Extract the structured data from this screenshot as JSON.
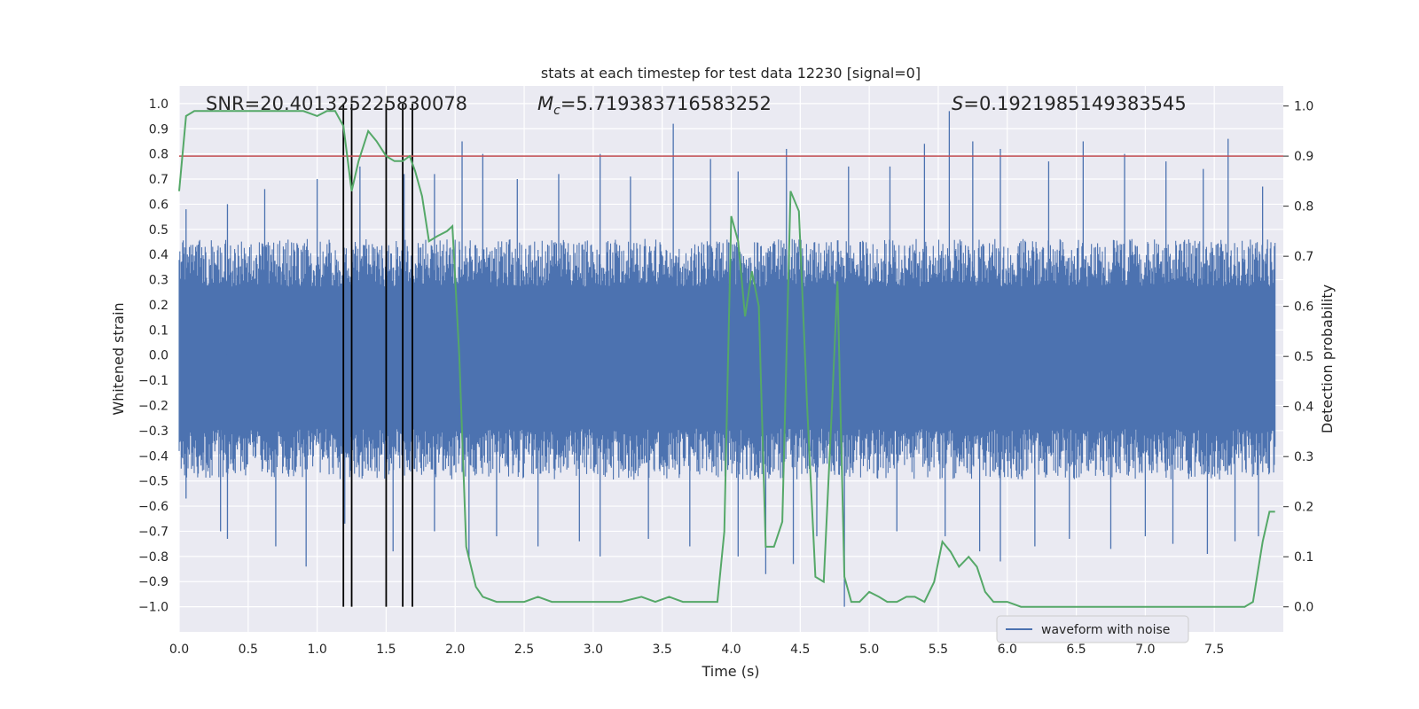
{
  "chart_data": {
    "type": "line",
    "title": "stats at each timestep for test data 12230 [signal=0]",
    "xlabel": "Time (s)",
    "ylabel_left": "Whitened strain",
    "ylabel_right": "Detection probability",
    "xlim": [
      0.0,
      8.0
    ],
    "ylim_left": [
      -1.1,
      1.07
    ],
    "ylim_right": [
      -0.05,
      1.04
    ],
    "grid": true,
    "x_ticks": [
      "0.0",
      "0.5",
      "1.0",
      "1.5",
      "2.0",
      "2.5",
      "3.0",
      "3.5",
      "4.0",
      "4.5",
      "5.0",
      "5.5",
      "6.0",
      "6.5",
      "7.0",
      "7.5"
    ],
    "x_tick_values": [
      0.0,
      0.5,
      1.0,
      1.5,
      2.0,
      2.5,
      3.0,
      3.5,
      4.0,
      4.5,
      5.0,
      5.5,
      6.0,
      6.5,
      7.0,
      7.5
    ],
    "y_ticks_left": [
      "1.0",
      "0.9",
      "0.8",
      "0.7",
      "0.6",
      "0.5",
      "0.4",
      "0.3",
      "0.2",
      "0.1",
      "0.0",
      "−0.1",
      "−0.2",
      "−0.3",
      "−0.4",
      "−0.5",
      "−0.6",
      "−0.7",
      "−0.8",
      "−0.9",
      "−1.0"
    ],
    "y_tick_values_left": [
      1.0,
      0.9,
      0.8,
      0.7,
      0.6,
      0.5,
      0.4,
      0.3,
      0.2,
      0.1,
      0.0,
      -0.1,
      -0.2,
      -0.3,
      -0.4,
      -0.5,
      -0.6,
      -0.7,
      -0.8,
      -0.9,
      -1.0
    ],
    "y_ticks_right": [
      "1.0",
      "0.9",
      "0.8",
      "0.7",
      "0.6",
      "0.5",
      "0.4",
      "0.3",
      "0.2",
      "0.1",
      "0.0"
    ],
    "y_tick_values_right": [
      1.0,
      0.9,
      0.8,
      0.7,
      0.6,
      0.5,
      0.4,
      0.3,
      0.2,
      0.1,
      0.0
    ],
    "annotations": {
      "snr": "SNR=20.401325225830078",
      "mc_symbol": "M",
      "mc_subscript": "c",
      "mc_value": "=5.719383716583252",
      "s_symbol": "S",
      "s_value": "=0.1921985149383545"
    },
    "threshold_right": 0.9,
    "vertical_markers": [
      1.19,
      1.25,
      1.5,
      1.62,
      1.69
    ],
    "waveform": {
      "name": "waveform with noise",
      "typical_low": -0.45,
      "typical_high": 0.42,
      "spikes_high": [
        [
          0.05,
          0.58
        ],
        [
          0.35,
          0.6
        ],
        [
          0.62,
          0.66
        ],
        [
          1.0,
          0.7
        ],
        [
          1.31,
          0.75
        ],
        [
          1.63,
          0.72
        ],
        [
          1.85,
          0.72
        ],
        [
          2.05,
          0.85
        ],
        [
          2.2,
          0.8
        ],
        [
          2.45,
          0.7
        ],
        [
          2.75,
          0.72
        ],
        [
          3.05,
          0.8
        ],
        [
          3.27,
          0.71
        ],
        [
          3.58,
          0.92
        ],
        [
          3.85,
          0.78
        ],
        [
          4.05,
          0.73
        ],
        [
          4.4,
          0.82
        ],
        [
          4.85,
          0.75
        ],
        [
          5.15,
          0.75
        ],
        [
          5.4,
          0.84
        ],
        [
          5.58,
          0.97
        ],
        [
          5.75,
          0.85
        ],
        [
          5.95,
          0.82
        ],
        [
          6.3,
          0.77
        ],
        [
          6.55,
          0.85
        ],
        [
          6.85,
          0.8
        ],
        [
          7.15,
          0.77
        ],
        [
          7.42,
          0.74
        ],
        [
          7.6,
          0.86
        ],
        [
          7.85,
          0.67
        ]
      ],
      "spikes_low": [
        [
          0.05,
          -0.57
        ],
        [
          0.3,
          -0.7
        ],
        [
          0.35,
          -0.73
        ],
        [
          0.7,
          -0.76
        ],
        [
          0.92,
          -0.84
        ],
        [
          1.2,
          -0.67
        ],
        [
          1.55,
          -0.78
        ],
        [
          1.85,
          -0.7
        ],
        [
          2.1,
          -0.8
        ],
        [
          2.3,
          -0.72
        ],
        [
          2.6,
          -0.76
        ],
        [
          2.9,
          -0.74
        ],
        [
          3.05,
          -0.8
        ],
        [
          3.4,
          -0.73
        ],
        [
          3.7,
          -0.76
        ],
        [
          4.05,
          -0.8
        ],
        [
          4.25,
          -0.87
        ],
        [
          4.45,
          -0.83
        ],
        [
          4.62,
          -0.72
        ],
        [
          4.82,
          -1.0
        ],
        [
          5.2,
          -0.7
        ],
        [
          5.55,
          -0.72
        ],
        [
          5.8,
          -0.78
        ],
        [
          5.95,
          -0.82
        ],
        [
          6.2,
          -0.76
        ],
        [
          6.45,
          -0.73
        ],
        [
          6.75,
          -0.77
        ],
        [
          7.0,
          -0.72
        ],
        [
          7.2,
          -0.75
        ],
        [
          7.45,
          -0.79
        ],
        [
          7.65,
          -0.74
        ],
        [
          7.82,
          -0.72
        ]
      ]
    },
    "detection_probability": {
      "x": [
        0.0,
        0.05,
        0.11,
        0.2,
        0.3,
        0.4,
        0.5,
        0.6,
        0.7,
        0.8,
        0.9,
        1.0,
        1.07,
        1.13,
        1.19,
        1.25,
        1.3,
        1.37,
        1.43,
        1.5,
        1.56,
        1.62,
        1.67,
        1.71,
        1.76,
        1.81,
        1.87,
        1.94,
        1.98,
        2.03,
        2.08,
        2.15,
        2.2,
        2.3,
        2.4,
        2.5,
        2.6,
        2.7,
        2.8,
        2.9,
        3.0,
        3.1,
        3.2,
        3.35,
        3.45,
        3.55,
        3.65,
        3.75,
        3.85,
        3.9,
        3.95,
        4.0,
        4.05,
        4.1,
        4.15,
        4.2,
        4.25,
        4.31,
        4.37,
        4.43,
        4.49,
        4.55,
        4.61,
        4.67,
        4.73,
        4.77,
        4.82,
        4.87,
        4.93,
        5.0,
        5.07,
        5.13,
        5.2,
        5.27,
        5.33,
        5.4,
        5.47,
        5.53,
        5.59,
        5.65,
        5.72,
        5.78,
        5.84,
        5.9,
        6.0,
        6.1,
        6.2,
        6.3,
        6.5,
        6.7,
        6.9,
        7.1,
        7.3,
        7.5,
        7.65,
        7.72,
        7.78,
        7.85,
        7.9,
        7.94
      ],
      "y": [
        0.83,
        0.98,
        0.99,
        0.99,
        0.99,
        0.99,
        0.99,
        0.99,
        0.99,
        0.99,
        0.99,
        0.98,
        0.99,
        0.99,
        0.96,
        0.83,
        0.89,
        0.95,
        0.93,
        0.9,
        0.89,
        0.89,
        0.9,
        0.87,
        0.82,
        0.73,
        0.74,
        0.75,
        0.76,
        0.5,
        0.12,
        0.04,
        0.02,
        0.01,
        0.01,
        0.01,
        0.02,
        0.01,
        0.01,
        0.01,
        0.01,
        0.01,
        0.01,
        0.02,
        0.01,
        0.02,
        0.01,
        0.01,
        0.01,
        0.01,
        0.15,
        0.78,
        0.73,
        0.58,
        0.67,
        0.6,
        0.12,
        0.12,
        0.17,
        0.83,
        0.79,
        0.4,
        0.06,
        0.05,
        0.4,
        0.65,
        0.06,
        0.01,
        0.01,
        0.03,
        0.02,
        0.01,
        0.01,
        0.02,
        0.02,
        0.01,
        0.05,
        0.13,
        0.11,
        0.08,
        0.1,
        0.08,
        0.03,
        0.01,
        0.01,
        0.0,
        0.0,
        0.0,
        0.0,
        0.0,
        0.0,
        0.0,
        0.0,
        0.0,
        0.0,
        0.0,
        0.01,
        0.13,
        0.19,
        0.19
      ]
    },
    "legend": {
      "entry": "waveform with noise",
      "location": "lower-right"
    },
    "colors": {
      "waveform": "#4c72b0",
      "probability": "#55a868",
      "threshold": "#c44e52",
      "markers": "#000000",
      "plot_bg": "#eaeaf2",
      "grid": "#ffffff"
    }
  }
}
